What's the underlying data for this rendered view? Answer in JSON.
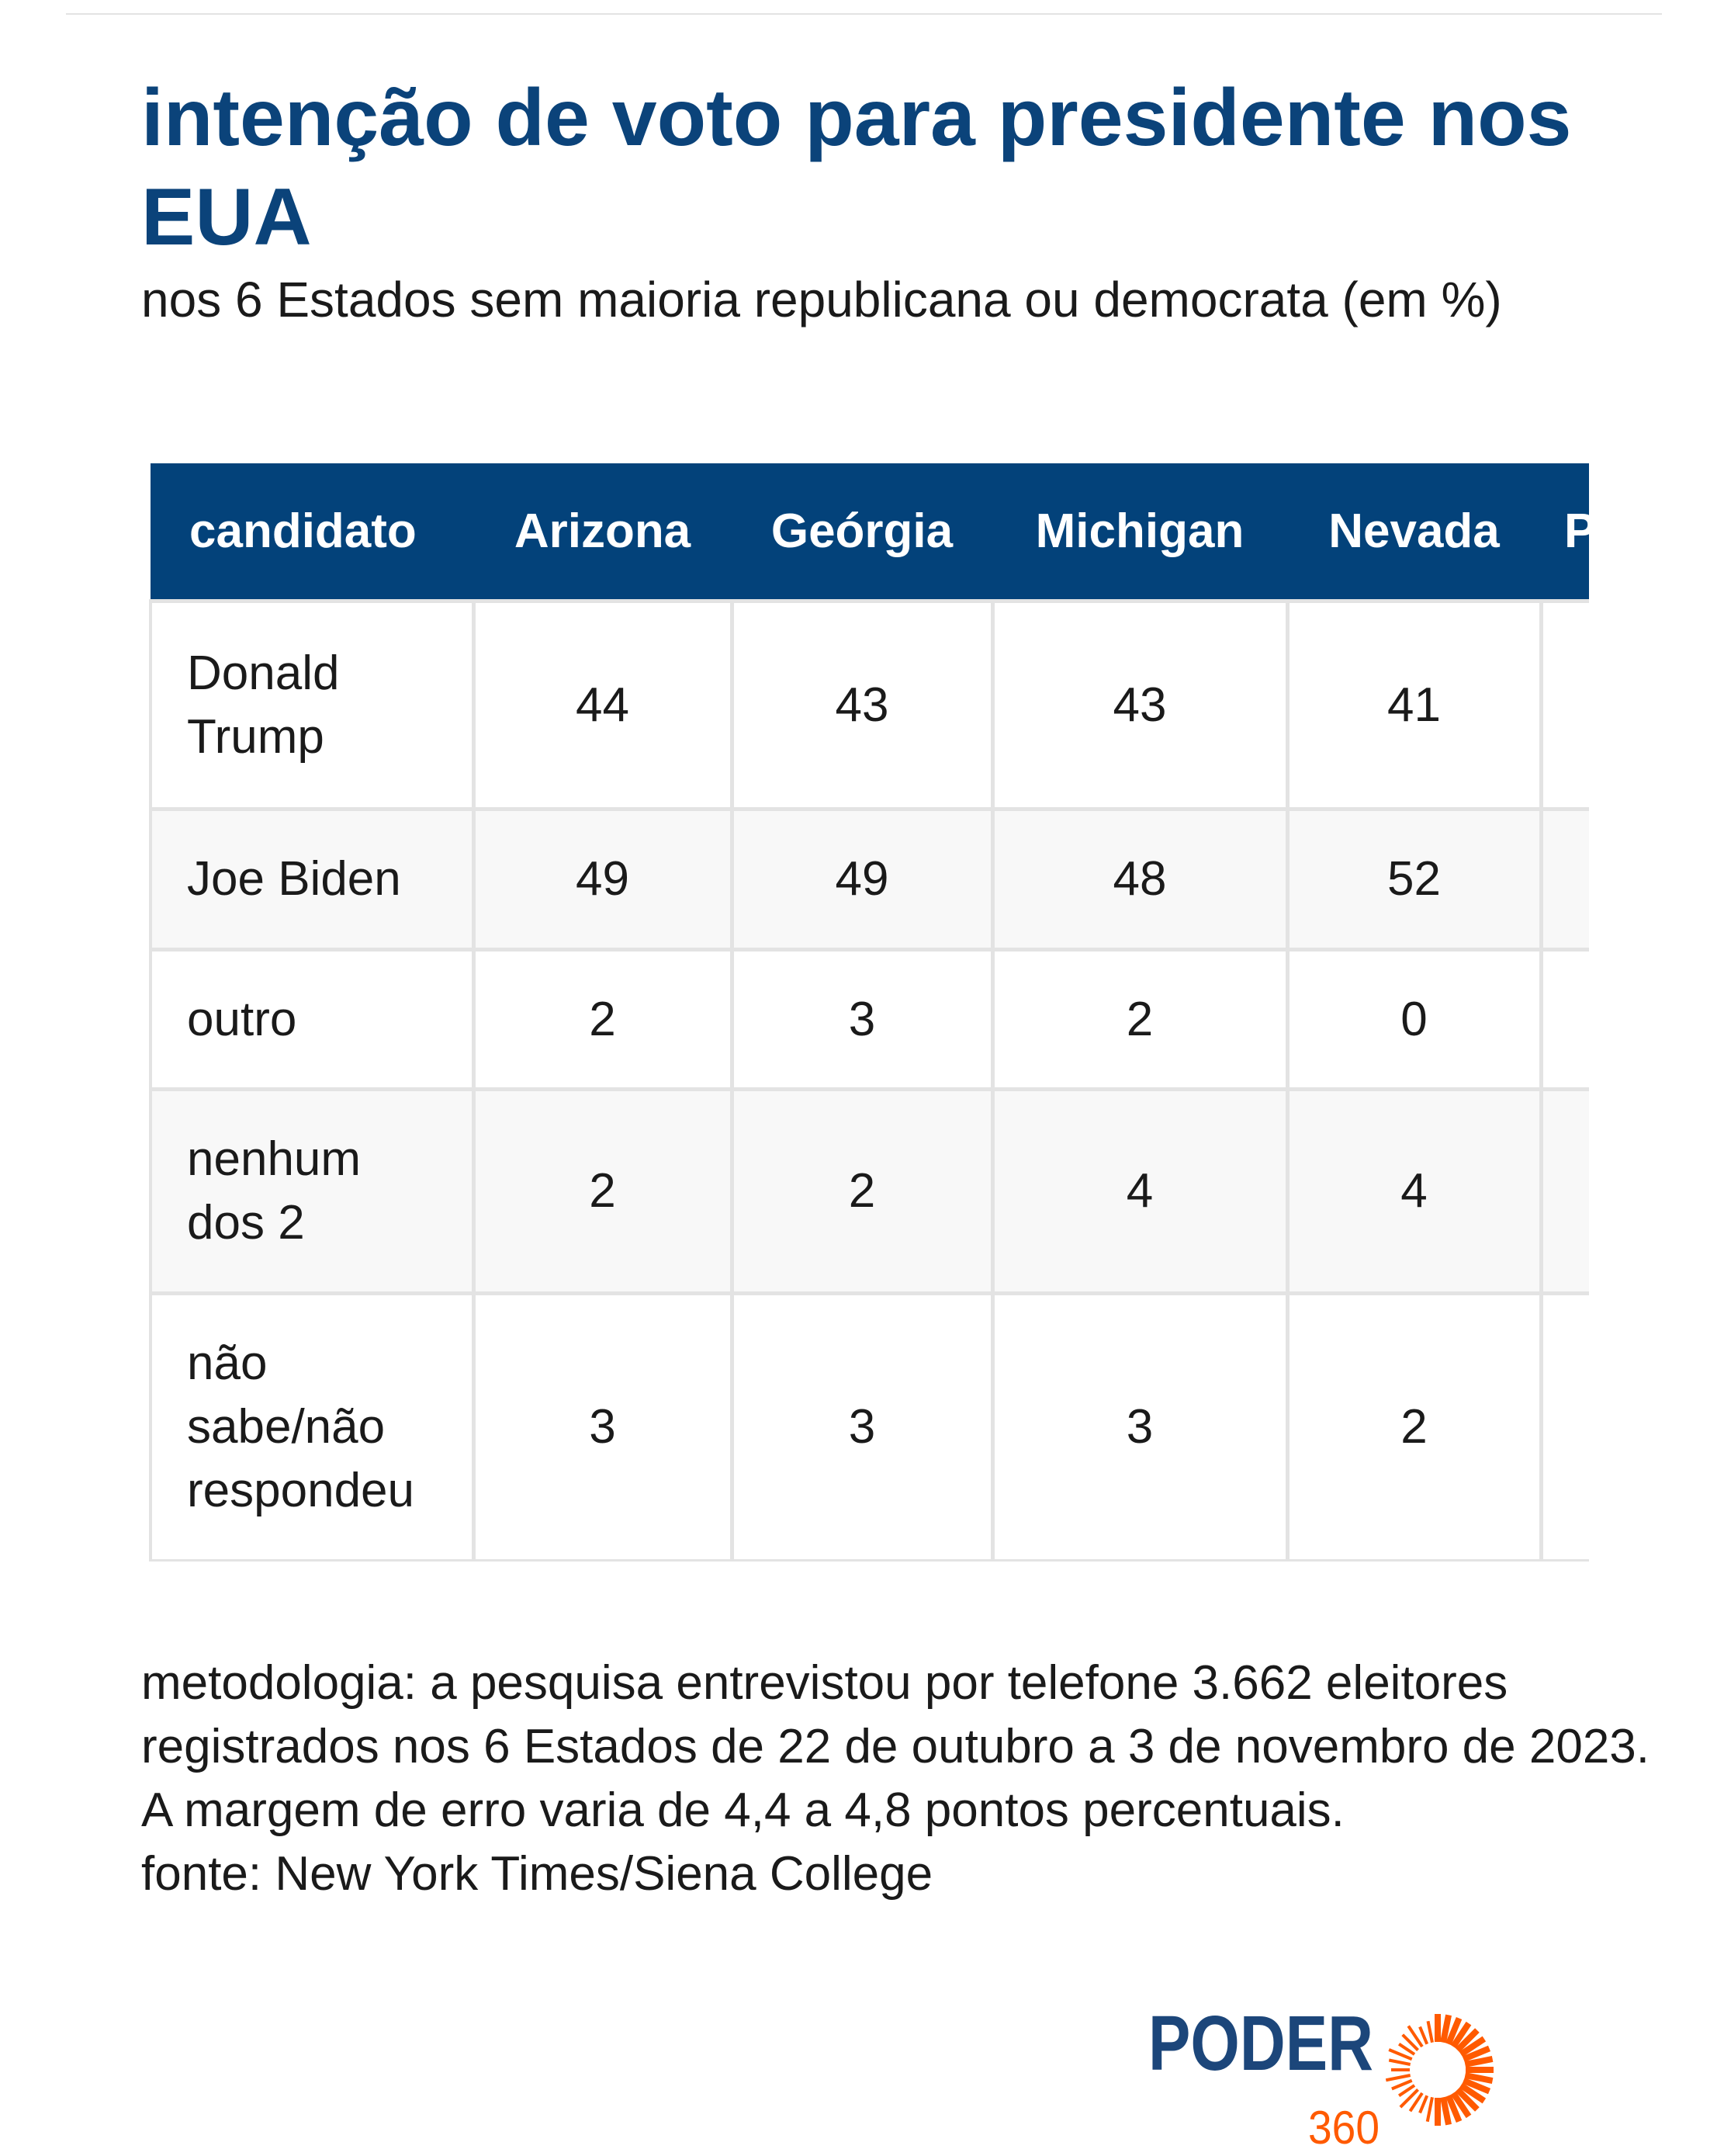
{
  "title": "intenção de voto para presidente nos EUA",
  "subtitle": "nos 6 Estados sem maioria republicana ou democrata (em %)",
  "table": {
    "headers": [
      "candidato",
      "Arizona",
      "Geórgia",
      "Michigan",
      "Nevada",
      "Pensilvânia"
    ],
    "rows": [
      {
        "label": "Donald Trump",
        "values": [
          "44",
          "43",
          "43",
          "41",
          ""
        ]
      },
      {
        "label": "Joe Biden",
        "values": [
          "49",
          "49",
          "48",
          "52",
          ""
        ]
      },
      {
        "label": "outro",
        "values": [
          "2",
          "3",
          "2",
          "0",
          ""
        ]
      },
      {
        "label": "nenhum dos 2",
        "values": [
          "2",
          "2",
          "4",
          "4",
          ""
        ]
      },
      {
        "label": "não sabe/não respondeu",
        "values": [
          "3",
          "3",
          "3",
          "2",
          ""
        ]
      }
    ]
  },
  "footer": {
    "methodology": "metodologia: a pesquisa entrevistou por telefone 3.662 eleitores registrados nos 6 Estados de 22 de outubro a 3 de novembro de 2023. A margem de erro varia de 4,4 a 4,8 pontos percentuais.",
    "source": "fonte: New York Times/Siena College"
  },
  "logo": {
    "word": "PODER",
    "number": "360"
  },
  "colors": {
    "header": "#03427a",
    "title": "#0b437a",
    "logo_blue": "#1c467a",
    "logo_orange": "#ff5a00",
    "border": "#e3e3e3"
  }
}
